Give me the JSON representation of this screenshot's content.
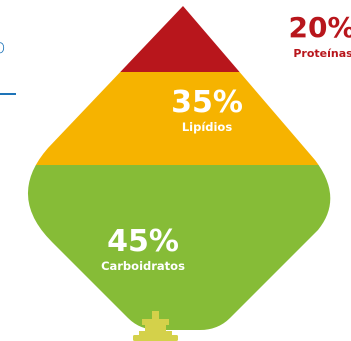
{
  "segments": [
    {
      "key": "proteinas",
      "percent": "20%",
      "label": "Proteínas",
      "fill_color": "#b8161c",
      "text_color": "#b8161c"
    },
    {
      "key": "lipidios",
      "percent": "35%",
      "label": "Lipídios",
      "fill_color": "#f6b300",
      "text_color": "#ffffff"
    },
    {
      "key": "carboidratos",
      "percent": "45%",
      "label": "Carboidratos",
      "fill_color": "#86bc37",
      "text_color": "#ffffff"
    }
  ],
  "port_color": "#d4d14a",
  "left_edge_fragment": "o",
  "accent_blue": "#1e74b8"
}
